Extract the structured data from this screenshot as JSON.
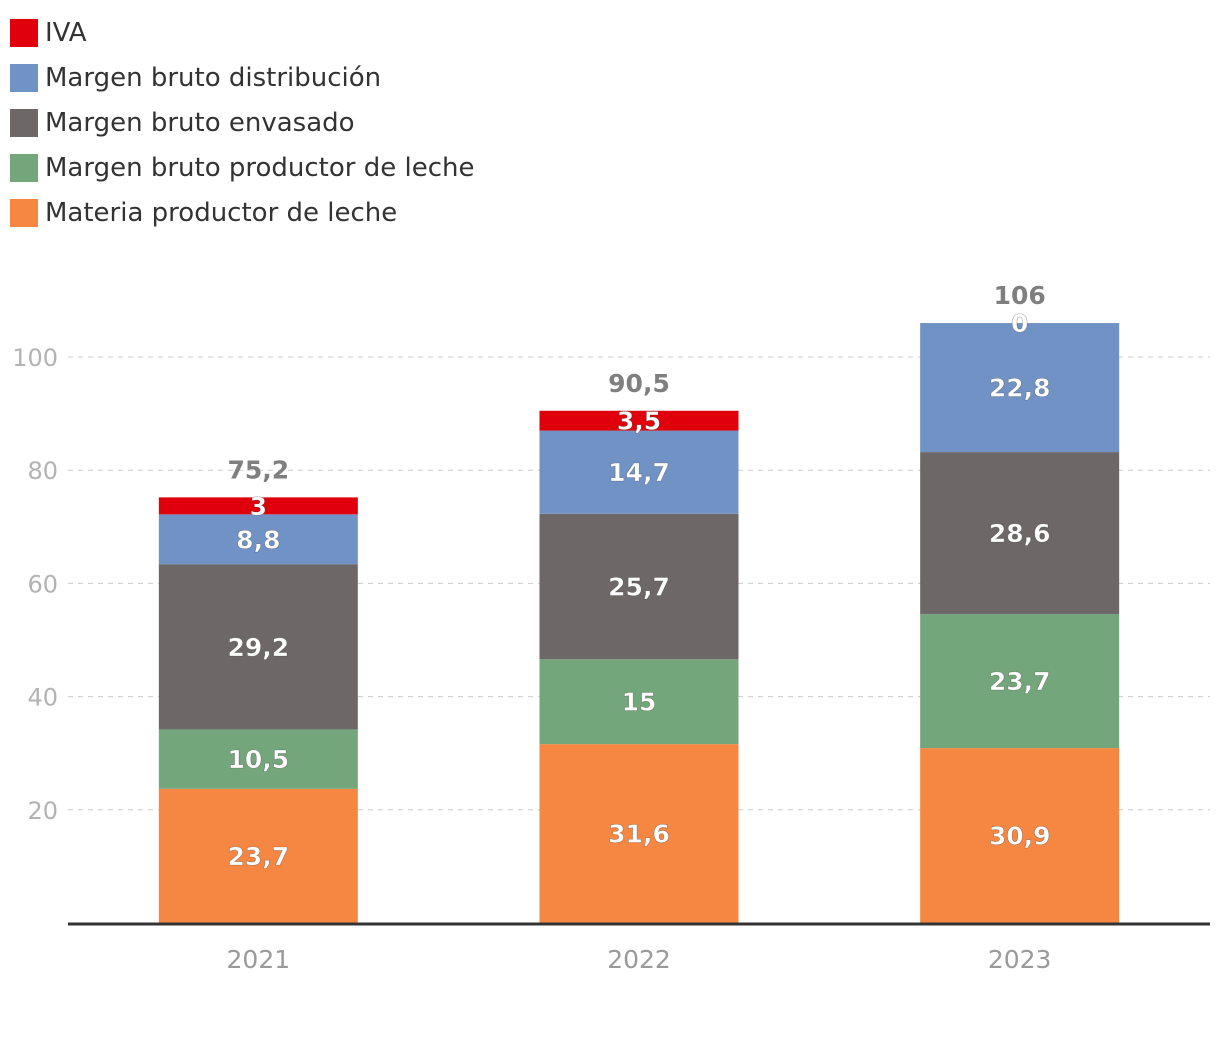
{
  "chart_data": {
    "type": "bar",
    "stacked": true,
    "title": "",
    "xlabel": "",
    "ylabel": "",
    "categories": [
      "2021",
      "2022",
      "2023"
    ],
    "series": [
      {
        "name": "Materia productor de leche",
        "color": "#f58742",
        "values": [
          23.7,
          31.6,
          30.9
        ],
        "labels": [
          "23,7",
          "31,6",
          "30,9"
        ]
      },
      {
        "name": "Margen bruto productor de leche",
        "color": "#74a67b",
        "values": [
          10.5,
          15,
          23.7
        ],
        "labels": [
          "10,5",
          "15",
          "23,7"
        ]
      },
      {
        "name": "Margen bruto envasado",
        "color": "#6e6768",
        "values": [
          29.2,
          25.7,
          28.6
        ],
        "labels": [
          "29,2",
          "25,7",
          "28,6"
        ]
      },
      {
        "name": "Margen bruto distribución",
        "color": "#7192c4",
        "values": [
          8.8,
          14.7,
          22.8
        ],
        "labels": [
          "8,8",
          "14,7",
          "22,8"
        ]
      },
      {
        "name": "IVA",
        "color": "#e0000c",
        "values": [
          3,
          3.5,
          0
        ],
        "labels": [
          "3",
          "3,5",
          "0"
        ]
      }
    ],
    "totals": [
      75.2,
      90.5,
      106
    ],
    "total_labels": [
      "75,2",
      "90,5",
      "106"
    ],
    "ylim": [
      0,
      110
    ],
    "yticks": [
      20,
      40,
      60,
      80,
      100
    ],
    "grid": true,
    "legend_position": "top-left",
    "legend_order": [
      "IVA",
      "Margen bruto distribución",
      "Margen bruto envasado",
      "Margen bruto productor de leche",
      "Materia productor de leche"
    ]
  }
}
